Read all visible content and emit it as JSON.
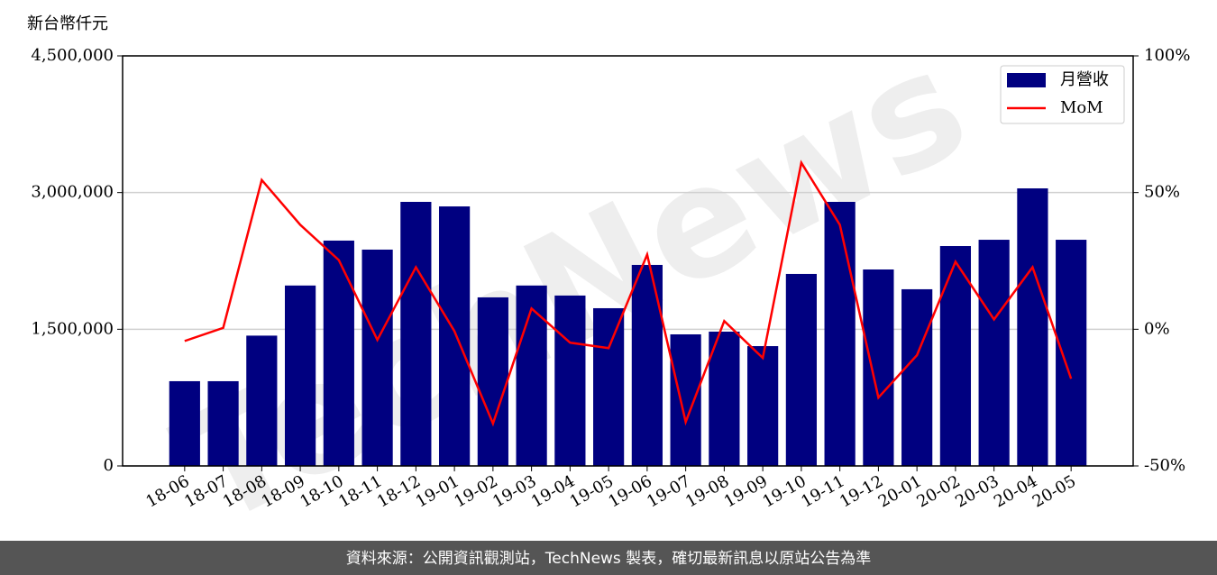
{
  "chart_data": {
    "type": "bar",
    "ylabel": "新台幣仟元",
    "watermark": "TechNews",
    "source": "資料來源：公開資訊觀測站，TechNews 製表，確切最新訊息以原站公告為準",
    "categories": [
      "18-06",
      "18-07",
      "18-08",
      "18-09",
      "18-10",
      "18-11",
      "18-12",
      "19-01",
      "19-02",
      "19-03",
      "19-04",
      "19-05",
      "19-06",
      "19-07",
      "19-08",
      "19-09",
      "19-10",
      "19-11",
      "19-12",
      "20-01",
      "20-02",
      "20-03",
      "20-04",
      "20-05"
    ],
    "series": [
      {
        "name": "月營收",
        "type": "bar",
        "color": "#000080",
        "values": [
          930000,
          930000,
          1430000,
          1980000,
          2473000,
          2374000,
          2898000,
          2848000,
          1850000,
          1980000,
          1870000,
          1731000,
          2206000,
          1444000,
          1474000,
          1315000,
          2107000,
          2898000,
          2156000,
          1939000,
          2413000,
          2482000,
          3046000,
          2482000
        ]
      },
      {
        "name": "MoM",
        "type": "line",
        "axis": "y2",
        "color": "#ff0000",
        "values": [
          -4.3,
          0.5,
          54.6,
          38.2,
          25.3,
          -3.9,
          22.7,
          -0.7,
          -34.5,
          7.6,
          -4.9,
          -6.9,
          27.3,
          -33.9,
          3.0,
          -10.5,
          60.9,
          38.2,
          -25.0,
          -9.5,
          24.7,
          3.6,
          22.7,
          -18.1
        ]
      }
    ],
    "ylim": [
      0,
      4500000
    ],
    "yticks": [
      {
        "value": 0,
        "label": "0"
      },
      {
        "value": 1500000,
        "label": "1,500,000"
      },
      {
        "value": 3000000,
        "label": "3,000,000"
      },
      {
        "value": 4500000,
        "label": "4,500,000"
      }
    ],
    "y2lim": [
      -50,
      100
    ],
    "y2ticks": [
      {
        "value": -50,
        "label": "-50%"
      },
      {
        "value": 0,
        "label": "0%"
      },
      {
        "value": 50,
        "label": "50%"
      },
      {
        "value": 100,
        "label": "100%"
      }
    ],
    "grid": true,
    "legend": "upper right"
  }
}
